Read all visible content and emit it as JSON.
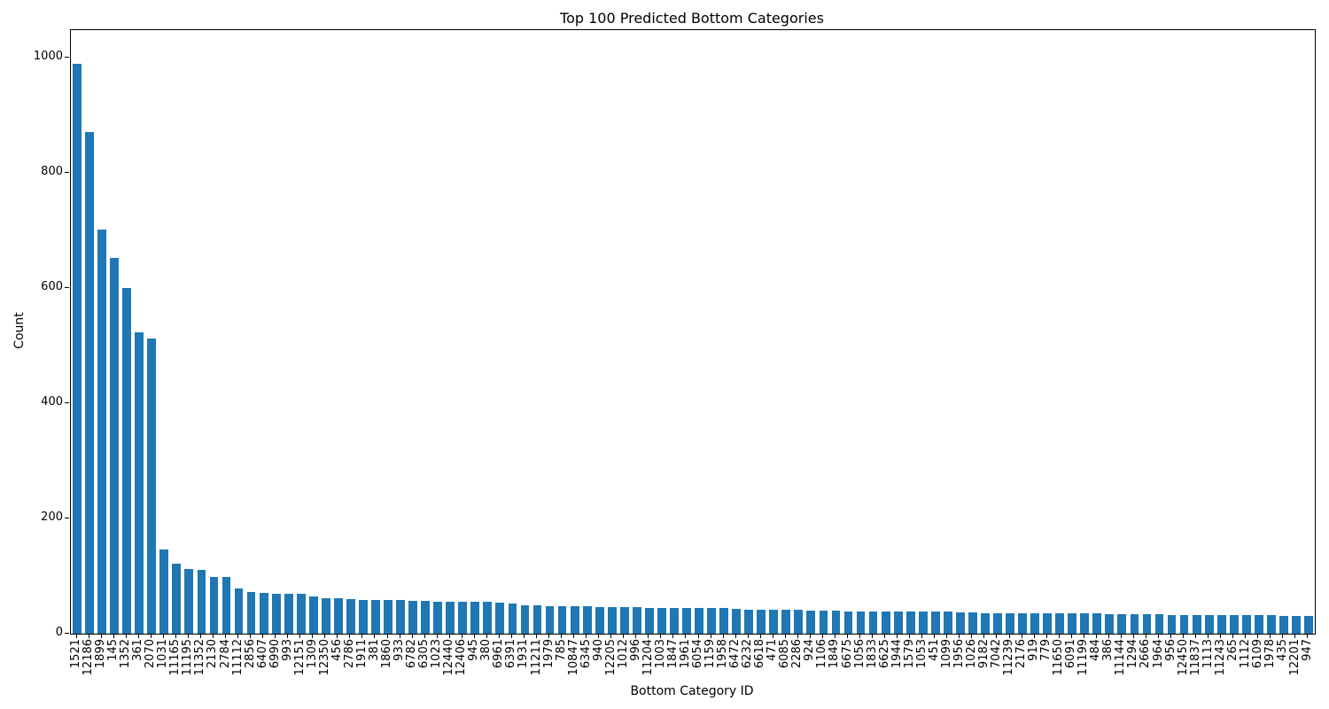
{
  "chart_data": {
    "type": "bar",
    "title": "Top 100 Predicted Bottom Categories",
    "xlabel": "Bottom Category ID",
    "ylabel": "Count",
    "ylim": [
      0,
      1048
    ],
    "yticks": [
      0,
      200,
      400,
      600,
      800,
      1000
    ],
    "grid": false,
    "legend": "none",
    "bar_color": "#1f77b4",
    "categories": [
      "1521",
      "12186",
      "1899",
      "145",
      "1352",
      "361",
      "2070",
      "1031",
      "11165",
      "11195",
      "11352",
      "2130",
      "2784",
      "11112",
      "2856",
      "6407",
      "6990",
      "993",
      "12151",
      "1309",
      "12350",
      "456",
      "2786",
      "1911",
      "381",
      "1860",
      "933",
      "6782",
      "6305",
      "1023",
      "12440",
      "12406",
      "945",
      "380",
      "6961",
      "6391",
      "1931",
      "11211",
      "1979",
      "785",
      "10847",
      "6345",
      "940",
      "12205",
      "1012",
      "996",
      "11204",
      "1003",
      "1847",
      "1961",
      "6054",
      "1159",
      "1958",
      "6472",
      "6232",
      "6618",
      "471",
      "6085",
      "2286",
      "924",
      "1106",
      "1849",
      "6675",
      "1056",
      "1833",
      "6625",
      "1944",
      "1579",
      "1053",
      "451",
      "1099",
      "1956",
      "1026",
      "9182",
      "7042",
      "11239",
      "2176",
      "919",
      "779",
      "11650",
      "6091",
      "11199",
      "484",
      "386",
      "11144",
      "1294",
      "2666",
      "1964",
      "956",
      "12450",
      "11837",
      "1113",
      "11243",
      "265",
      "1112",
      "6109",
      "1978",
      "435",
      "12201",
      "947"
    ],
    "values": [
      990,
      871,
      702,
      652,
      600,
      523,
      512,
      146,
      122,
      113,
      111,
      99,
      98,
      78,
      72,
      71,
      70,
      70,
      69,
      64,
      62,
      61,
      60,
      59,
      58,
      58,
      58,
      57,
      57,
      56,
      56,
      56,
      55,
      55,
      54,
      53,
      49,
      49,
      48,
      48,
      47,
      47,
      46,
      46,
      46,
      46,
      45,
      45,
      45,
      45,
      44,
      44,
      44,
      43,
      42,
      42,
      41,
      41,
      41,
      40,
      40,
      40,
      39,
      39,
      39,
      39,
      39,
      38,
      38,
      38,
      38,
      37,
      37,
      36,
      36,
      36,
      36,
      36,
      36,
      36,
      35,
      35,
      35,
      34,
      34,
      34,
      34,
      34,
      33,
      33,
      33,
      33,
      33,
      32,
      32,
      32,
      32,
      31,
      31,
      31
    ]
  }
}
